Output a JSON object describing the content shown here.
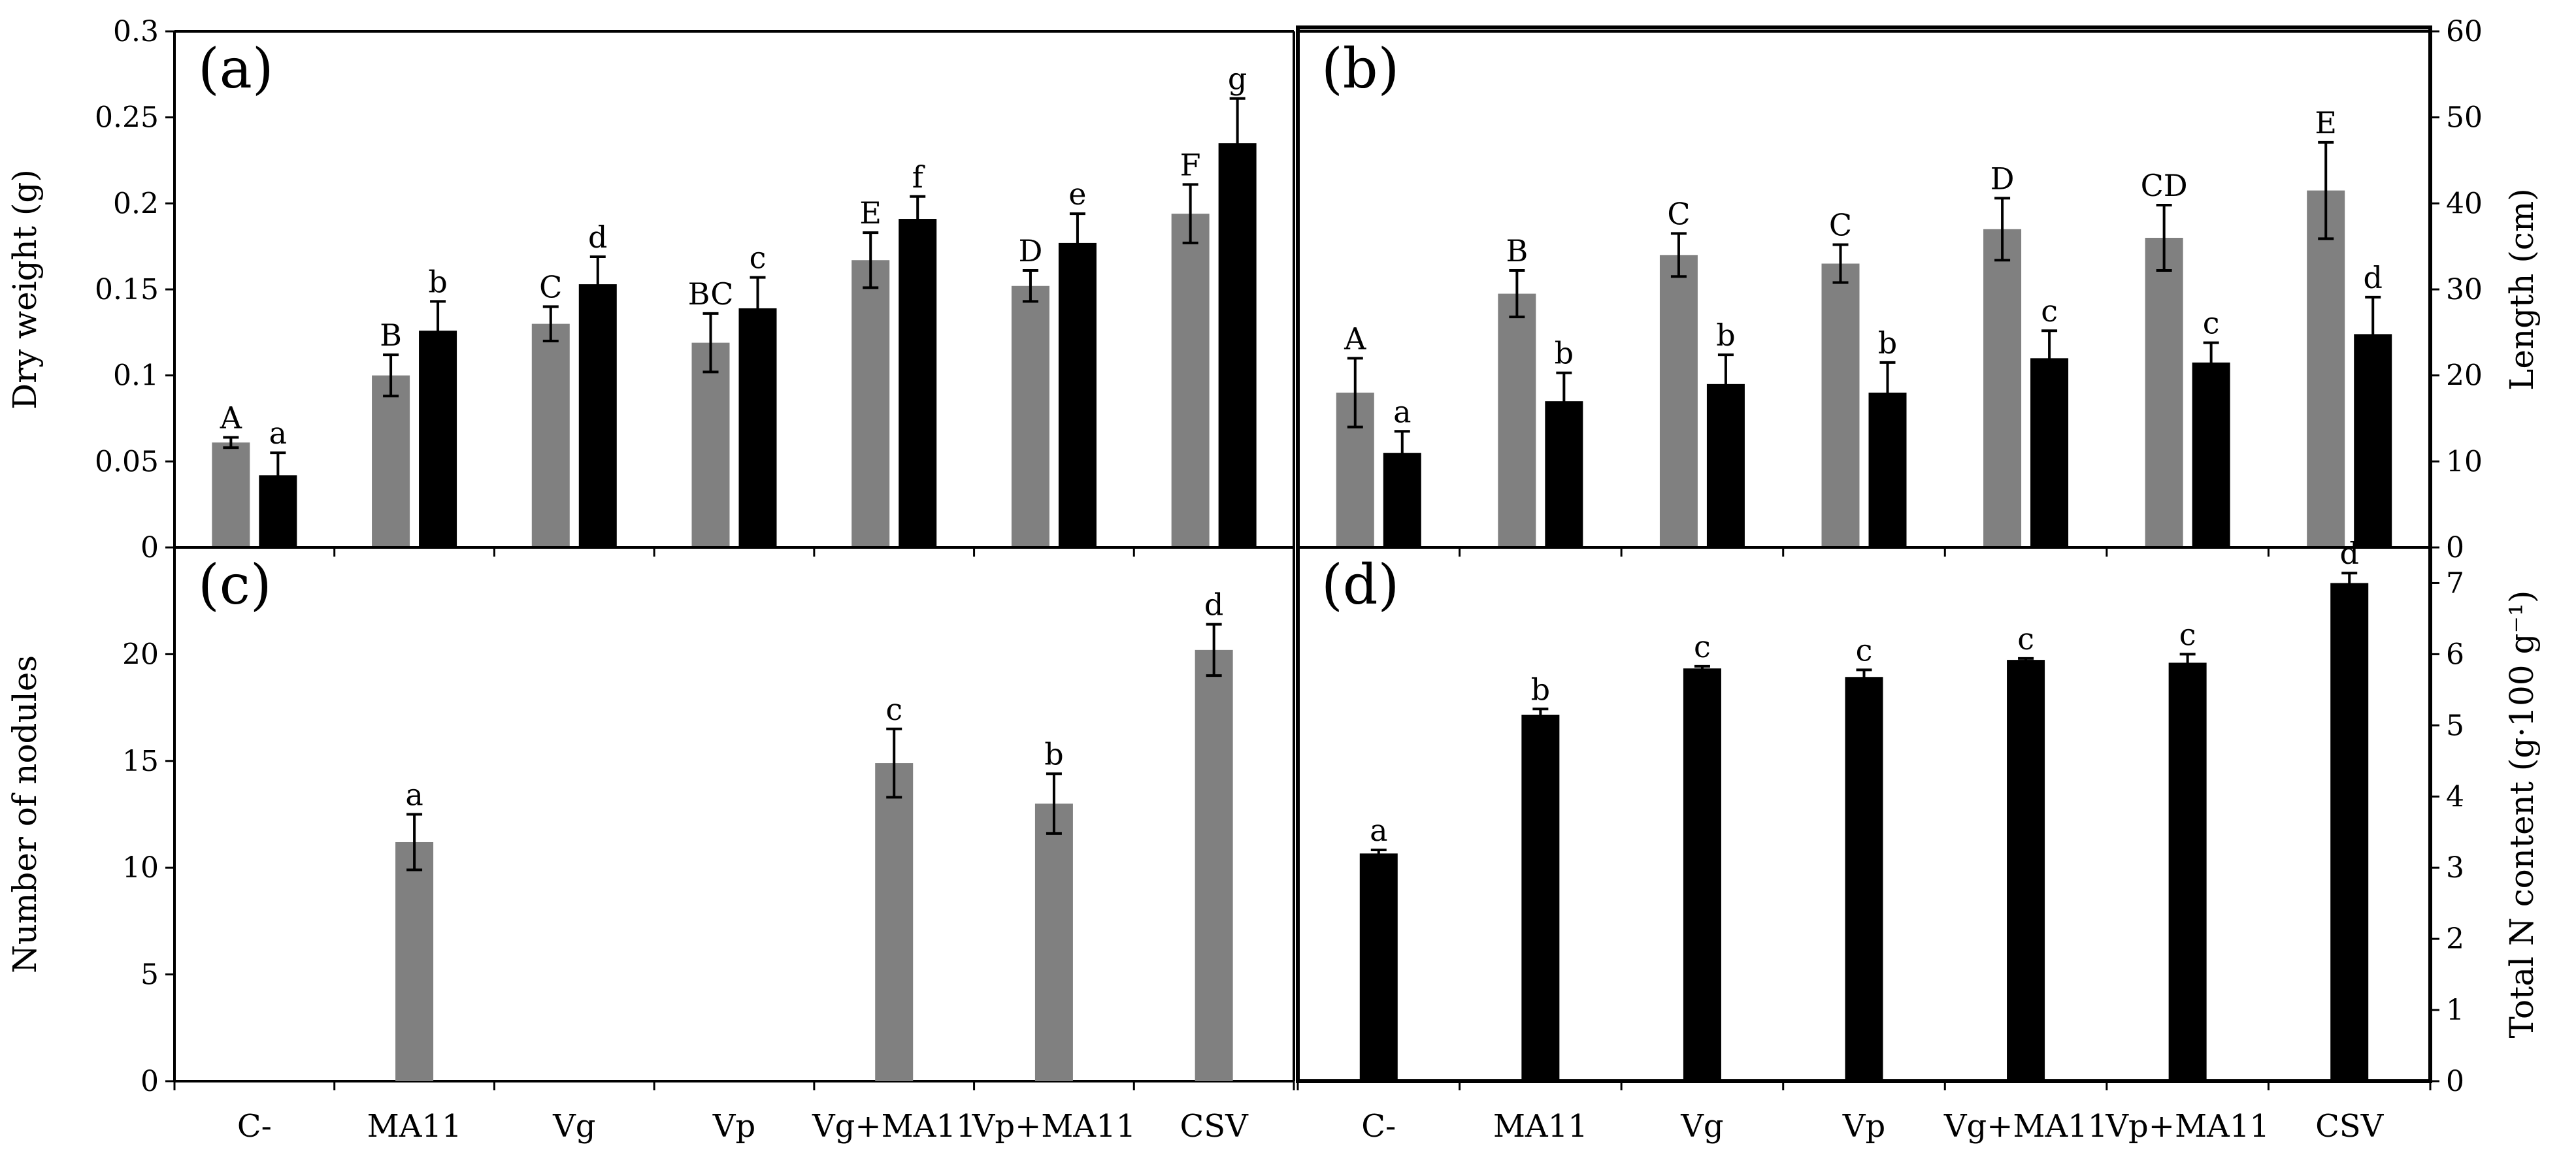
{
  "chart_data": [
    {
      "id": "a",
      "type": "bar",
      "panel_label": "(a)",
      "title": "",
      "xlabel": "",
      "ylabel": "Dry weight (g)",
      "ylim": [
        0,
        0.3
      ],
      "yticks": [
        0,
        0.05,
        0.1,
        0.15,
        0.2,
        0.25,
        0.3
      ],
      "ytick_labels": [
        "0",
        "0.05",
        "0.1",
        "0.15",
        "0.2",
        "0.25",
        "0.3"
      ],
      "categories": [
        "C-",
        "MA11",
        "Vg",
        "Vp",
        "Vg+MA11",
        "Vp+MA11",
        "CSV"
      ],
      "series": [
        {
          "name": "gray",
          "color": "#808080",
          "values": [
            0.061,
            0.1,
            0.13,
            0.119,
            0.167,
            0.152,
            0.194
          ],
          "errors": [
            0.003,
            0.012,
            0.01,
            0.017,
            0.016,
            0.009,
            0.017
          ],
          "letters": [
            "A",
            "B",
            "C",
            "BC",
            "E",
            "D",
            "F"
          ]
        },
        {
          "name": "black",
          "color": "#000000",
          "values": [
            0.042,
            0.126,
            0.153,
            0.139,
            0.191,
            0.177,
            0.235
          ],
          "errors": [
            0.013,
            0.017,
            0.016,
            0.018,
            0.013,
            0.017,
            0.026
          ],
          "letters": [
            "a",
            "b",
            "d",
            "c",
            "f",
            "e",
            "g"
          ]
        }
      ]
    },
    {
      "id": "b",
      "type": "bar",
      "panel_label": "(b)",
      "title": "",
      "xlabel": "",
      "ylabel": "Length (cm)",
      "ylim": [
        0,
        60
      ],
      "yticks": [
        0,
        10,
        20,
        30,
        40,
        50,
        60
      ],
      "ytick_labels": [
        "0",
        "10",
        "20",
        "30",
        "40",
        "50",
        "60"
      ],
      "categories": [
        "C-",
        "MA11",
        "Vg",
        "Vp",
        "Vg+MA11",
        "Vp+MA11",
        "CSV"
      ],
      "series": [
        {
          "name": "gray",
          "color": "#808080",
          "values": [
            18.0,
            29.5,
            34.0,
            33.0,
            37.0,
            36.0,
            41.5
          ],
          "errors": [
            4.0,
            2.7,
            2.5,
            2.2,
            3.6,
            3.8,
            5.6
          ],
          "letters": [
            "A",
            "B",
            "C",
            "C",
            "D",
            "CD",
            "E"
          ]
        },
        {
          "name": "black",
          "color": "#000000",
          "values": [
            11.0,
            17.0,
            19.0,
            18.0,
            22.0,
            21.5,
            24.8
          ],
          "errors": [
            2.5,
            3.3,
            3.4,
            3.5,
            3.2,
            2.3,
            4.3
          ],
          "letters": [
            "a",
            "b",
            "b",
            "b",
            "c",
            "c",
            "d"
          ]
        }
      ]
    },
    {
      "id": "c",
      "type": "bar",
      "panel_label": "(c)",
      "title": "",
      "xlabel": "",
      "ylabel": "Number of  nodules",
      "ylim": [
        0,
        25
      ],
      "yticks": [
        0,
        5,
        10,
        15,
        20
      ],
      "ytick_labels": [
        "0",
        "5",
        "10",
        "15",
        "20"
      ],
      "categories": [
        "C-",
        "MA11",
        "Vg",
        "Vp",
        "Vg+MA11",
        "Vp+MA11",
        "CSV"
      ],
      "series": [
        {
          "name": "gray",
          "color": "#808080",
          "values": [
            0,
            11.2,
            0,
            0,
            14.9,
            13.0,
            20.2
          ],
          "errors": [
            0,
            1.3,
            0,
            0,
            1.6,
            1.4,
            1.2
          ],
          "letters": [
            "",
            "a",
            "",
            "",
            "c",
            "b",
            "d"
          ]
        }
      ]
    },
    {
      "id": "d",
      "type": "bar",
      "panel_label": "(d)",
      "title": "",
      "xlabel": "",
      "ylabel": "Total N content (g·100 g⁻¹)",
      "ylim": [
        0,
        7.5
      ],
      "yticks": [
        0,
        1,
        2,
        3,
        4,
        5,
        6,
        7
      ],
      "ytick_labels": [
        "0",
        "1",
        "2",
        "3",
        "4",
        "5",
        "6",
        "7"
      ],
      "categories": [
        "C-",
        "MA11",
        "Vg",
        "Vp",
        "Vg+MA11",
        "Vp+MA11",
        "CSV"
      ],
      "series": [
        {
          "name": "black",
          "color": "#000000",
          "values": [
            3.2,
            5.15,
            5.8,
            5.68,
            5.92,
            5.88,
            7.0
          ],
          "errors": [
            0.05,
            0.08,
            0.03,
            0.1,
            0.02,
            0.12,
            0.14
          ],
          "letters": [
            "a",
            "b",
            "c",
            "c",
            "c",
            "c",
            "d"
          ]
        }
      ]
    }
  ]
}
